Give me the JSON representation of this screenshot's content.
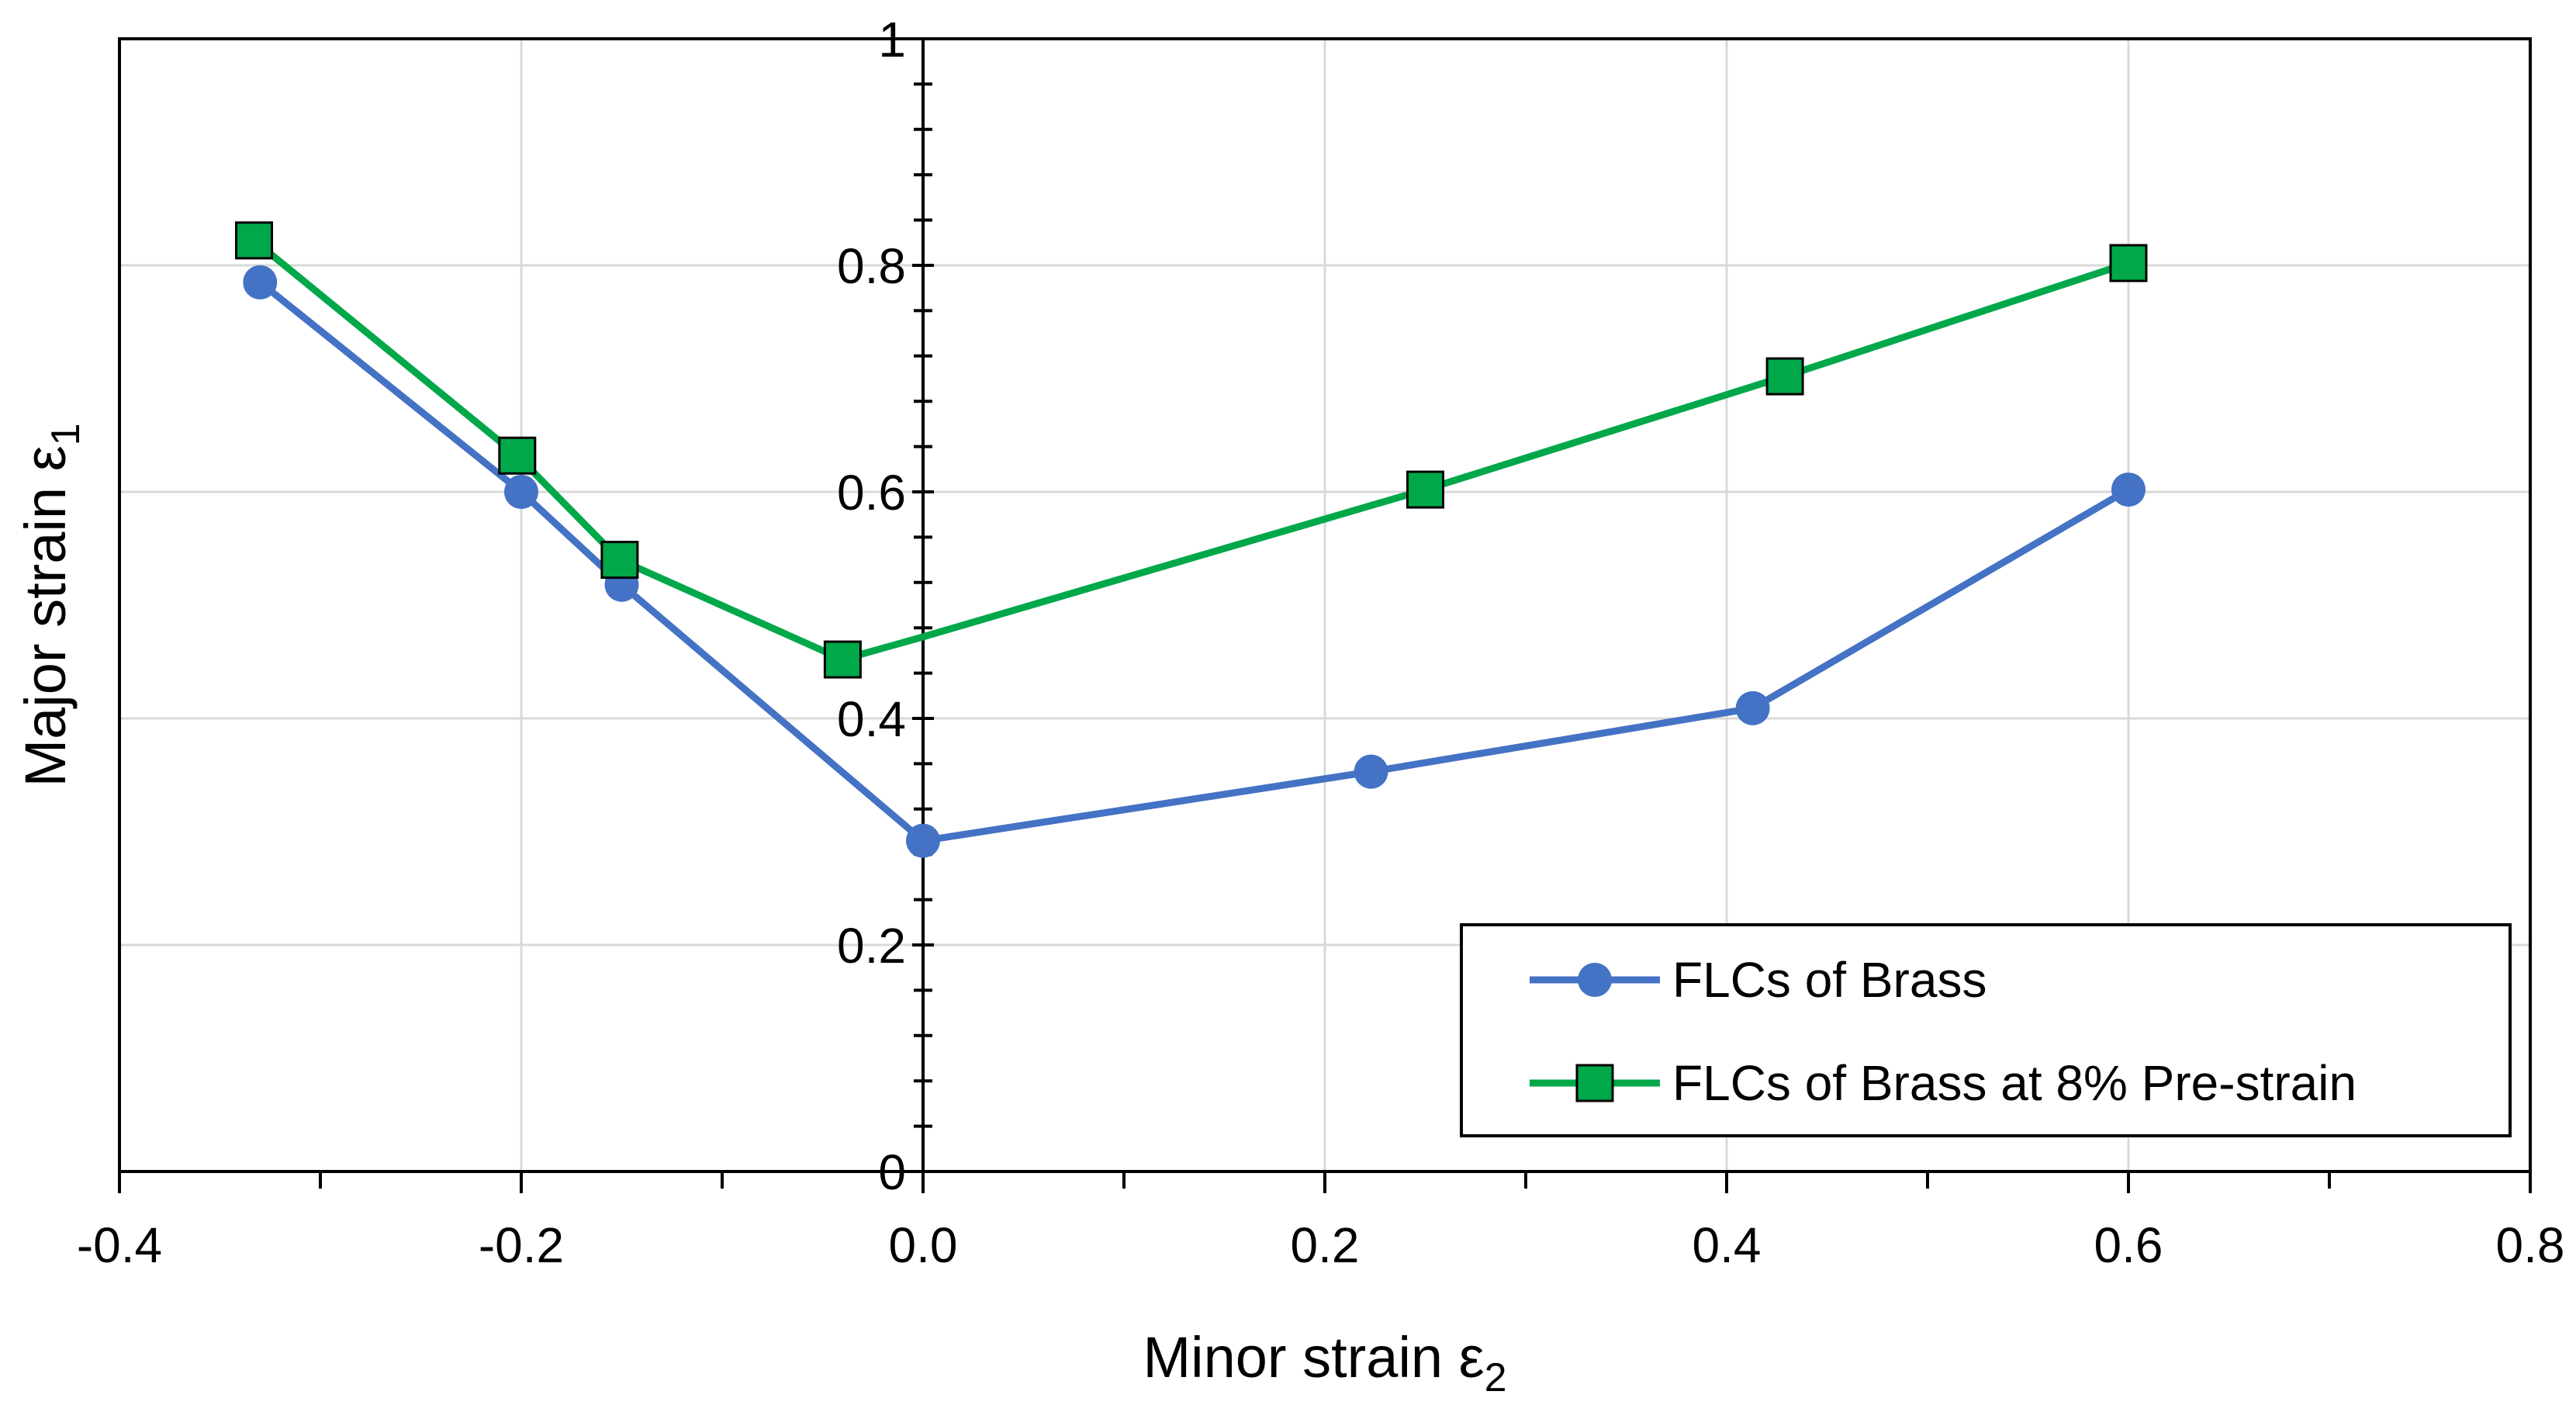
{
  "chart_data": {
    "type": "line",
    "title": "",
    "xlabel": "Minor strain ε",
    "xlabel_sub": "2",
    "ylabel": "Major strain ε",
    "ylabel_sub": "1",
    "xlim": [
      -0.4,
      0.8
    ],
    "ylim": [
      0,
      1
    ],
    "x_ticks": [
      -0.4,
      -0.2,
      0.0,
      0.2,
      0.4,
      0.6,
      0.8
    ],
    "x_tick_labels": [
      "-0.4",
      "-0.2",
      "0.0",
      "0.2",
      "0.4",
      "0.6",
      "0.8"
    ],
    "y_ticks": [
      0,
      0.2,
      0.4,
      0.6,
      0.8,
      1
    ],
    "y_tick_labels": [
      "0",
      "0.2",
      "0.4",
      "0.6",
      "0.8",
      "1"
    ],
    "grid": true,
    "legend_position": "bottom-right",
    "series": [
      {
        "name": "FLCs of Brass",
        "color": "#4472C4",
        "marker": "circle",
        "x": [
          -0.33,
          -0.2,
          -0.15,
          0.0,
          0.223,
          0.413,
          0.6
        ],
        "y": [
          0.785,
          0.6,
          0.518,
          0.292,
          0.353,
          0.409,
          0.602
        ]
      },
      {
        "name": "FLCs of Brass at 8% Pre-strain",
        "color": "#00A84A",
        "marker": "square",
        "x": [
          -0.333,
          -0.202,
          -0.151,
          -0.04,
          0.0,
          0.25,
          0.429,
          0.6
        ],
        "y": [
          0.822,
          0.632,
          0.54,
          0.452,
          0.472,
          0.602,
          0.702,
          0.802
        ],
        "marker_mask": [
          true,
          true,
          true,
          true,
          false,
          true,
          true,
          true
        ]
      }
    ]
  }
}
